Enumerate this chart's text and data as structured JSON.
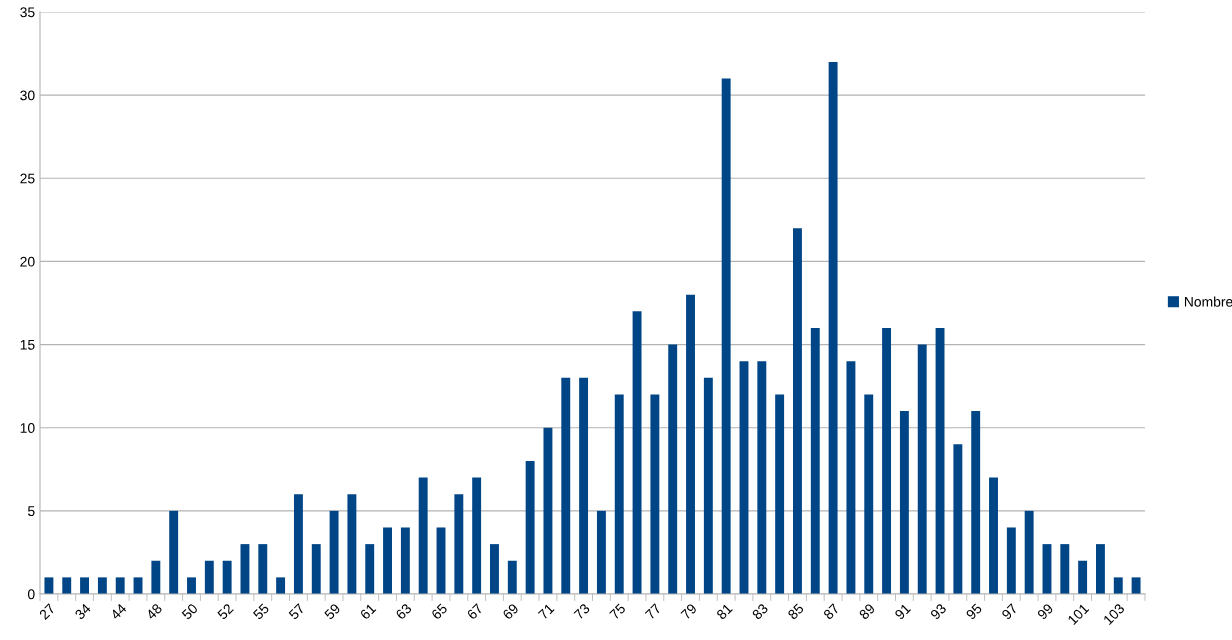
{
  "chart_data": {
    "type": "bar",
    "categories": [
      "27",
      null,
      "34",
      null,
      "44",
      null,
      "48",
      null,
      "50",
      null,
      "52",
      null,
      "55",
      null,
      "57",
      null,
      "59",
      null,
      "61",
      null,
      "63",
      null,
      "65",
      null,
      "67",
      null,
      "69",
      null,
      "71",
      null,
      "73",
      null,
      "75",
      null,
      "77",
      null,
      "79",
      null,
      "81",
      null,
      "83",
      null,
      "85",
      null,
      "87",
      null,
      "89",
      null,
      "91",
      null,
      "93",
      null,
      "95",
      null,
      "97",
      null,
      "99",
      null,
      "101",
      null,
      "103",
      null
    ],
    "series": [
      {
        "name": "Nombre",
        "color": "#004586",
        "values": [
          1,
          1,
          1,
          1,
          1,
          1,
          2,
          5,
          1,
          2,
          2,
          3,
          3,
          1,
          6,
          3,
          5,
          6,
          3,
          4,
          4,
          7,
          4,
          6,
          7,
          3,
          2,
          8,
          10,
          13,
          13,
          5,
          12,
          17,
          12,
          15,
          18,
          13,
          31,
          14,
          14,
          12,
          22,
          16,
          32,
          14,
          12,
          16,
          11,
          15,
          16,
          9,
          11,
          7,
          4,
          5,
          3,
          3,
          2,
          3,
          1,
          1
        ]
      }
    ],
    "ylim": [
      0,
      35
    ],
    "yticks": [
      0,
      5,
      10,
      15,
      20,
      25,
      30,
      35
    ],
    "grid": "y",
    "legend": "right"
  }
}
